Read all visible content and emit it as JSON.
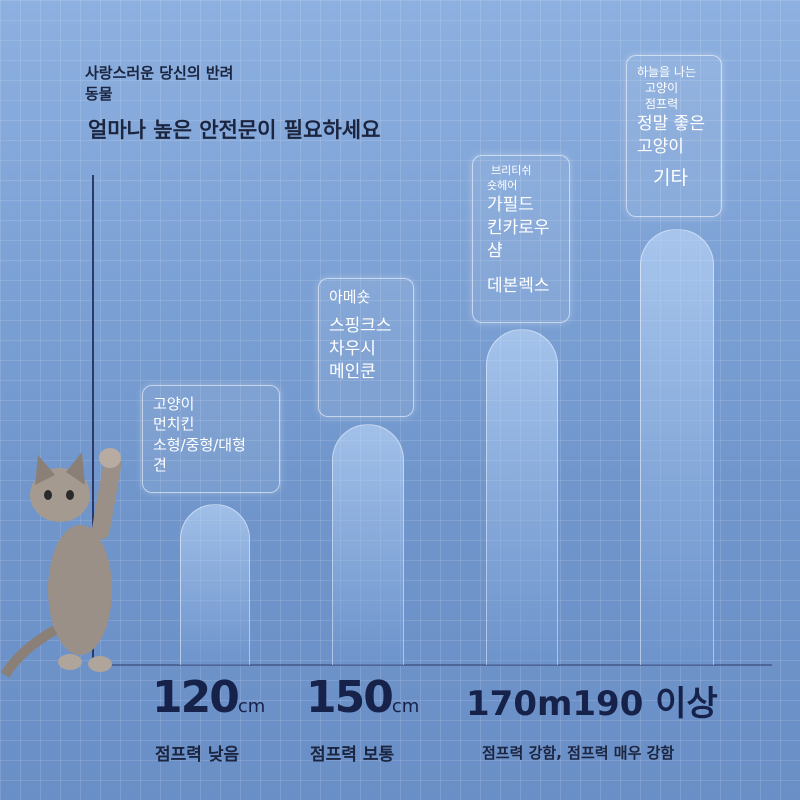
{
  "header": {
    "line1": "사랑스러운 당신의 반려",
    "line2": "동물",
    "title": "얼마나 높은 안전문이 필요하세요"
  },
  "columns": [
    {
      "lines": [
        "고양이",
        "먼치킨",
        "소형/중형/대형",
        "견"
      ],
      "height": "120",
      "unit": "cm",
      "caption": "점프력 낮음"
    },
    {
      "lines": [
        "아메숏",
        "스핑크스",
        "차우시",
        "메인쿤"
      ],
      "height": "150",
      "unit": "cm",
      "caption": "점프력 보통"
    },
    {
      "lines": [
        "브리티쉬",
        "숏헤어",
        "가필드",
        "킨카로우",
        "샴",
        "데본렉스"
      ]
    },
    {
      "lines": [
        "하늘을 나는",
        "고양이",
        "점프력",
        "정말 좋은",
        "고양이",
        "기타"
      ]
    }
  ],
  "wide_height": "170m190 이상",
  "wide_caption": "점프력 강함, 점프력 매우 강함"
}
